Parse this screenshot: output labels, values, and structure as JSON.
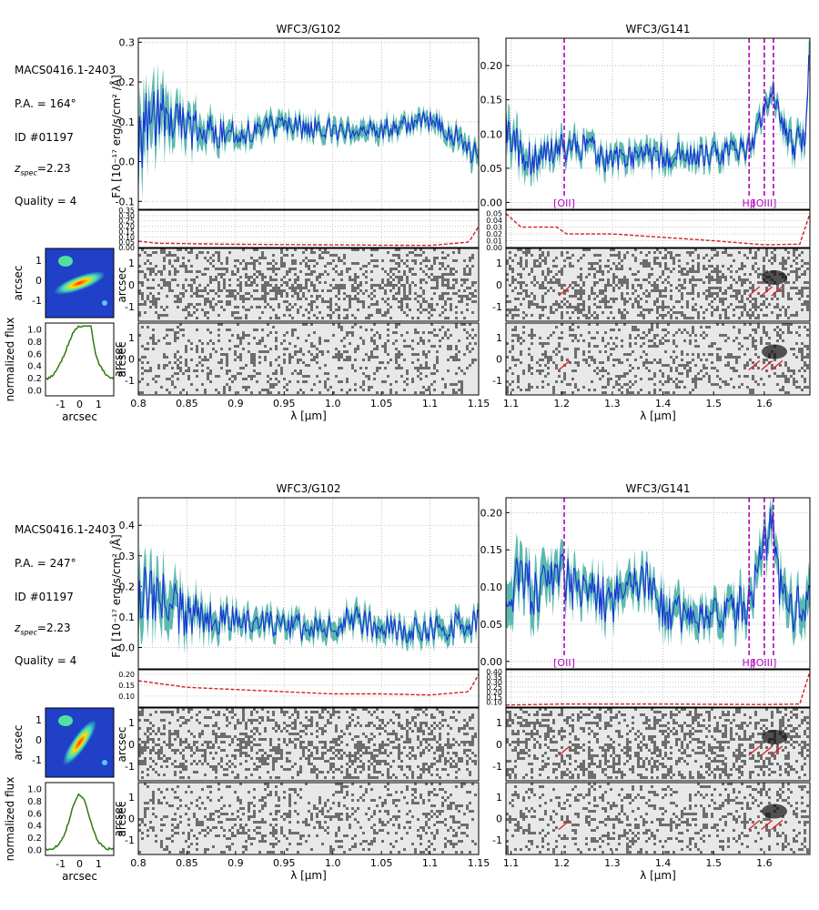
{
  "colors": {
    "spectrum": "#1433d6",
    "error_band": "#5cb8b0",
    "contam": "#d42020",
    "line_marker": "#b000c0",
    "profile": "#2d7a10",
    "grid": "#b0b0b0"
  },
  "chart_data": [
    {
      "type": "line",
      "object": "MACS0416.1-2403",
      "pa_label": "P.A. = 164°",
      "id_label": "ID #01197",
      "z_label": "z",
      "z_sub": "spec",
      "z_value": "=2.23",
      "quality_label": "Quality = 4",
      "ylabel": "F_λ [10^-17 erg/s/cm^2/Å]",
      "ylabel_text": "Fλ [10⁻¹⁷ erg/s/cm² /Å]",
      "panels": [
        {
          "title": "WFC3/G102",
          "xlabel": "λ [μm]",
          "xlim": [
            0.8,
            1.15
          ],
          "xticks": [
            0.8,
            0.85,
            0.9,
            0.95,
            1.0,
            1.05,
            1.1,
            1.15
          ],
          "ylim": [
            -0.12,
            0.31
          ],
          "yticks": [
            -0.1,
            0.0,
            0.1,
            0.2,
            0.3
          ],
          "flux_knots": [
            [
              0.8,
              0.05
            ],
            [
              0.81,
              0.12
            ],
            [
              0.82,
              0.11
            ],
            [
              0.85,
              0.08
            ],
            [
              0.9,
              0.07
            ],
            [
              0.95,
              0.09
            ],
            [
              1.0,
              0.08
            ],
            [
              1.05,
              0.075
            ],
            [
              1.09,
              0.11
            ],
            [
              1.12,
              0.08
            ],
            [
              1.15,
              0.01
            ]
          ],
          "noise_amp": [
            [
              0.8,
              0.12
            ],
            [
              0.85,
              0.06
            ],
            [
              0.9,
              0.035
            ],
            [
              1.1,
              0.03
            ],
            [
              1.15,
              0.04
            ]
          ],
          "contam_ylim": [
            0,
            0.35
          ],
          "contam_yticks": [
            0.0,
            0.05,
            0.1,
            0.15,
            0.2,
            0.25,
            0.3,
            0.35
          ],
          "contam_knots": [
            [
              0.8,
              0.06
            ],
            [
              0.82,
              0.04
            ],
            [
              0.9,
              0.03
            ],
            [
              1.0,
              0.025
            ],
            [
              1.1,
              0.02
            ],
            [
              1.14,
              0.05
            ],
            [
              1.15,
              0.2
            ]
          ],
          "lines": []
        },
        {
          "title": "WFC3/G141",
          "xlabel": "λ [μm]",
          "xlim": [
            1.09,
            1.69
          ],
          "xticks": [
            1.1,
            1.2,
            1.3,
            1.4,
            1.5,
            1.6
          ],
          "ylim": [
            -0.01,
            0.24
          ],
          "yticks": [
            0.0,
            0.05,
            0.1,
            0.15,
            0.2
          ],
          "flux_knots": [
            [
              1.09,
              0.12
            ],
            [
              1.12,
              0.06
            ],
            [
              1.2,
              0.08
            ],
            [
              1.25,
              0.08
            ],
            [
              1.3,
              0.06
            ],
            [
              1.4,
              0.07
            ],
            [
              1.5,
              0.07
            ],
            [
              1.57,
              0.08
            ],
            [
              1.6,
              0.13
            ],
            [
              1.615,
              0.17
            ],
            [
              1.63,
              0.12
            ],
            [
              1.66,
              0.08
            ],
            [
              1.68,
              0.1
            ],
            [
              1.69,
              0.22
            ]
          ],
          "noise_amp": [
            [
              1.09,
              0.04
            ],
            [
              1.15,
              0.025
            ],
            [
              1.6,
              0.02
            ],
            [
              1.69,
              0.03
            ]
          ],
          "contam_ylim": [
            0,
            0.055
          ],
          "contam_yticks": [
            0.0,
            0.01,
            0.02,
            0.03,
            0.04,
            0.05
          ],
          "contam_knots": [
            [
              1.09,
              0.05
            ],
            [
              1.12,
              0.03
            ],
            [
              1.19,
              0.03
            ],
            [
              1.21,
              0.02
            ],
            [
              1.3,
              0.02
            ],
            [
              1.5,
              0.01
            ],
            [
              1.6,
              0.004
            ],
            [
              1.67,
              0.005
            ],
            [
              1.69,
              0.05
            ]
          ],
          "lines": [
            {
              "label": "[OII]",
              "x": 1.205
            },
            {
              "label": "Hβ",
              "x": 1.57
            },
            {
              "label": "[OIII]",
              "x": 1.6
            },
            {
              "label": "",
              "x": 1.618
            }
          ]
        }
      ],
      "thumb": {
        "ylabel": "arcsec",
        "yticks": [
          1,
          0,
          -1
        ]
      },
      "profile": {
        "ylabel": "normalized flux",
        "xlabel": "arcsec",
        "yticks": [
          1.0,
          0.8,
          0.6,
          0.4,
          0.2,
          0.0
        ],
        "xticks": [
          -1,
          0,
          1
        ],
        "y2label": "arcsec"
      },
      "spec2d_ylabel": "arcsec",
      "spec2d_yticks": [
        1,
        0,
        -1
      ]
    },
    {
      "type": "line",
      "object": "MACS0416.1-2403",
      "pa_label": "P.A. = 247°",
      "id_label": "ID #01197",
      "z_label": "z",
      "z_sub": "spec",
      "z_value": "=2.23",
      "quality_label": "Quality = 4",
      "ylabel": "F_λ [10^-17 erg/s/cm^2/Å]",
      "ylabel_text": "Fλ [10⁻¹⁷ erg/s/cm² /Å]",
      "panels": [
        {
          "title": "WFC3/G102",
          "xlabel": "λ [μm]",
          "xlim": [
            0.8,
            1.15
          ],
          "xticks": [
            0.8,
            0.85,
            0.9,
            0.95,
            1.0,
            1.05,
            1.1,
            1.15
          ],
          "ylim": [
            -0.07,
            0.49
          ],
          "yticks": [
            0.0,
            0.1,
            0.2,
            0.3,
            0.4
          ],
          "flux_knots": [
            [
              0.8,
              0.22
            ],
            [
              0.82,
              0.15
            ],
            [
              0.85,
              0.11
            ],
            [
              0.9,
              0.09
            ],
            [
              0.95,
              0.07
            ],
            [
              1.0,
              0.06
            ],
            [
              1.02,
              0.1
            ],
            [
              1.05,
              0.06
            ],
            [
              1.1,
              0.06
            ],
            [
              1.15,
              0.08
            ]
          ],
          "noise_amp": [
            [
              0.8,
              0.15
            ],
            [
              0.85,
              0.08
            ],
            [
              0.9,
              0.05
            ],
            [
              1.15,
              0.05
            ]
          ],
          "contam_ylim": [
            0.05,
            0.22
          ],
          "contam_yticks": [
            0.1,
            0.15,
            0.2
          ],
          "contam_knots": [
            [
              0.8,
              0.17
            ],
            [
              0.85,
              0.14
            ],
            [
              0.9,
              0.13
            ],
            [
              0.95,
              0.12
            ],
            [
              1.0,
              0.11
            ],
            [
              1.05,
              0.11
            ],
            [
              1.1,
              0.105
            ],
            [
              1.14,
              0.12
            ],
            [
              1.15,
              0.2
            ]
          ],
          "lines": []
        },
        {
          "title": "WFC3/G141",
          "xlabel": "λ [μm]",
          "xlim": [
            1.09,
            1.69
          ],
          "xticks": [
            1.1,
            1.2,
            1.3,
            1.4,
            1.5,
            1.6
          ],
          "ylim": [
            -0.01,
            0.22
          ],
          "yticks": [
            0.0,
            0.05,
            0.1,
            0.15,
            0.2
          ],
          "flux_knots": [
            [
              1.09,
              0.1
            ],
            [
              1.15,
              0.1
            ],
            [
              1.2,
              0.12
            ],
            [
              1.22,
              0.1
            ],
            [
              1.3,
              0.08
            ],
            [
              1.35,
              0.11
            ],
            [
              1.38,
              0.11
            ],
            [
              1.4,
              0.07
            ],
            [
              1.5,
              0.06
            ],
            [
              1.57,
              0.08
            ],
            [
              1.6,
              0.15
            ],
            [
              1.615,
              0.19
            ],
            [
              1.63,
              0.1
            ],
            [
              1.66,
              0.07
            ],
            [
              1.69,
              0.08
            ]
          ],
          "noise_amp": [
            [
              1.09,
              0.05
            ],
            [
              1.2,
              0.035
            ],
            [
              1.5,
              0.03
            ],
            [
              1.69,
              0.04
            ]
          ],
          "contam_ylim": [
            0.05,
            0.42
          ],
          "contam_yticks": [
            0.1,
            0.15,
            0.2,
            0.25,
            0.3,
            0.35,
            0.4
          ],
          "contam_knots": [
            [
              1.09,
              0.07
            ],
            [
              1.2,
              0.08
            ],
            [
              1.4,
              0.08
            ],
            [
              1.6,
              0.075
            ],
            [
              1.67,
              0.08
            ],
            [
              1.69,
              0.4
            ]
          ],
          "lines": [
            {
              "label": "[OII]",
              "x": 1.205
            },
            {
              "label": "Hβ",
              "x": 1.57
            },
            {
              "label": "[OIII]",
              "x": 1.6
            },
            {
              "label": "",
              "x": 1.618
            }
          ]
        }
      ],
      "thumb": {
        "ylabel": "arcsec",
        "yticks": [
          1,
          0,
          -1
        ]
      },
      "profile": {
        "ylabel": "normalized flux",
        "xlabel": "arcsec",
        "yticks": [
          1.0,
          0.8,
          0.6,
          0.4,
          0.2,
          0.0
        ],
        "xticks": [
          -1,
          0,
          1
        ],
        "y2label": "arcsec"
      },
      "spec2d_ylabel": "arcsec",
      "spec2d_yticks": [
        1,
        0,
        -1
      ]
    }
  ]
}
